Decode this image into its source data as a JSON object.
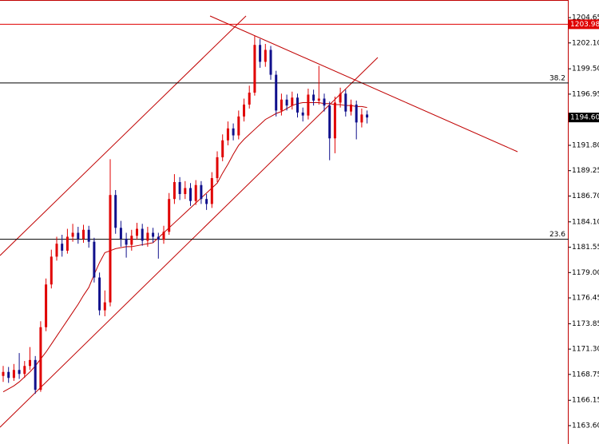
{
  "chart_data": {
    "type": "candlestick",
    "colors": {
      "up": "#e00000",
      "down": "#10108c",
      "ma": "#c00000",
      "price_line": "#e00000",
      "level": "#000000"
    },
    "ylim": [
      1161.75,
      1206.42
    ],
    "yticks": [
      1204.65,
      {
        "value": 1202.1,
        "label": "1202.10"
      },
      {
        "value": 1199.5,
        "label": "1199.50"
      },
      1196.95,
      {
        "value": 1191.8,
        "label": "1191.80"
      },
      1189.25,
      {
        "value": 1186.7,
        "label": "1186.70"
      },
      {
        "value": 1184.1,
        "label": "1184.10"
      },
      1181.55,
      {
        "value": 1179.0,
        "label": "1179.00"
      },
      1176.45,
      1173.85,
      {
        "value": 1171.3,
        "label": "1171.30"
      },
      1168.75,
      1166.15,
      {
        "value": 1163.6,
        "label": "1163.60"
      }
    ],
    "open": [
      1168.6,
      1169.0,
      1168.4,
      1169.2,
      1168.8,
      1169.6,
      1170.2,
      1167.2,
      1173.5,
      1177.8,
      1180.6,
      1181.9,
      1181.2,
      1182.6,
      1183.0,
      1182.4,
      1183.3,
      1182.1,
      1178.5,
      1175.2,
      1176.0,
      1186.8,
      1183.5,
      1182.4,
      1181.8,
      1182.7,
      1183.4,
      1182.2,
      1183.0,
      1182.6,
      1182.3,
      1183.1,
      1186.4,
      1188.1,
      1186.9,
      1187.5,
      1186.2,
      1187.8,
      1186.4,
      1185.9,
      1188.5,
      1190.6,
      1192.3,
      1193.5,
      1192.8,
      1194.7,
      1195.9,
      1197.1,
      1201.9,
      1200.2,
      1201.4,
      1198.9,
      1195.3,
      1196.4,
      1195.8,
      1196.6,
      1195.1,
      1194.8,
      1196.9,
      1196.3,
      1196.5,
      1195.8,
      1192.5,
      1196.1,
      1197.0,
      1195.2,
      1195.9,
      1194.1,
      1194.9
    ],
    "high": [
      1169.6,
      1169.5,
      1169.8,
      1170.9,
      1170.1,
      1171.5,
      1170.6,
      1174.1,
      1178.4,
      1181.3,
      1182.6,
      1182.8,
      1183.4,
      1183.9,
      1183.6,
      1183.8,
      1183.7,
      1182.5,
      1179.0,
      1177.2,
      1190.4,
      1187.3,
      1184.2,
      1183.0,
      1183.3,
      1184.0,
      1183.9,
      1183.6,
      1183.5,
      1183.0,
      1183.7,
      1187.0,
      1188.9,
      1188.6,
      1188.2,
      1188.0,
      1188.3,
      1188.2,
      1186.9,
      1189.1,
      1191.2,
      1192.9,
      1194.2,
      1194.0,
      1195.3,
      1196.5,
      1197.8,
      1202.8,
      1202.5,
      1202.0,
      1201.8,
      1199.3,
      1197.0,
      1196.9,
      1197.2,
      1197.0,
      1195.6,
      1197.5,
      1197.4,
      1199.8,
      1197.0,
      1196.2,
      1196.7,
      1197.6,
      1197.4,
      1196.4,
      1196.3,
      1195.5,
      1195.3
    ],
    "low": [
      1168.0,
      1167.9,
      1168.1,
      1168.3,
      1168.4,
      1169.2,
      1166.8,
      1167.0,
      1173.1,
      1177.4,
      1180.2,
      1180.6,
      1180.9,
      1182.1,
      1181.9,
      1182.0,
      1181.5,
      1178.0,
      1174.7,
      1174.6,
      1175.6,
      1182.9,
      1181.6,
      1180.5,
      1181.2,
      1182.3,
      1181.7,
      1181.6,
      1182.0,
      1180.4,
      1181.9,
      1182.8,
      1185.9,
      1186.3,
      1186.4,
      1185.7,
      1185.8,
      1185.9,
      1185.3,
      1185.5,
      1188.1,
      1190.2,
      1191.8,
      1192.3,
      1192.4,
      1194.2,
      1195.5,
      1196.8,
      1199.6,
      1199.7,
      1198.4,
      1194.7,
      1194.8,
      1195.3,
      1195.4,
      1194.6,
      1194.2,
      1194.4,
      1195.8,
      1195.9,
      1195.2,
      1190.3,
      1191.0,
      1195.6,
      1194.7,
      1194.8,
      1192.4,
      1193.6,
      1194.0
    ],
    "close": [
      1169.0,
      1168.4,
      1169.2,
      1168.8,
      1169.6,
      1170.2,
      1167.2,
      1173.5,
      1177.8,
      1180.6,
      1181.9,
      1181.2,
      1182.6,
      1183.0,
      1182.4,
      1183.3,
      1182.1,
      1178.5,
      1175.2,
      1176.0,
      1186.8,
      1183.5,
      1182.4,
      1181.8,
      1182.7,
      1183.4,
      1182.2,
      1183.0,
      1182.6,
      1182.3,
      1183.1,
      1186.4,
      1188.1,
      1186.9,
      1187.5,
      1186.2,
      1187.8,
      1186.4,
      1185.9,
      1188.5,
      1190.6,
      1192.3,
      1193.5,
      1192.8,
      1194.7,
      1195.9,
      1197.1,
      1201.9,
      1200.2,
      1201.4,
      1198.9,
      1195.3,
      1196.4,
      1195.8,
      1196.6,
      1195.1,
      1194.8,
      1196.9,
      1196.3,
      1196.5,
      1195.8,
      1192.5,
      1196.1,
      1197.0,
      1195.2,
      1195.9,
      1194.1,
      1194.9,
      1194.6
    ],
    "ma": [
      1167.0,
      1167.3,
      1167.6,
      1168.0,
      1168.5,
      1169.0,
      1169.6,
      1170.3,
      1171.0,
      1171.8,
      1172.6,
      1173.4,
      1174.2,
      1175.0,
      1175.8,
      1176.7,
      1177.5,
      1178.8,
      1180.0,
      1181.0,
      1181.2,
      1181.4,
      1181.5,
      1181.6,
      1181.6,
      1181.7,
      1181.8,
      1181.9,
      1182.0,
      1182.5,
      1183.0,
      1183.5,
      1184.0,
      1184.5,
      1185.0,
      1185.5,
      1186.0,
      1186.5,
      1187.0,
      1187.5,
      1188.0,
      1189.0,
      1189.9,
      1190.9,
      1191.8,
      1192.4,
      1192.9,
      1193.4,
      1193.9,
      1194.4,
      1194.7,
      1195.0,
      1195.2,
      1195.5,
      1195.8,
      1196.0,
      1196.1,
      1196.1,
      1196.1,
      1196.1,
      1196.0,
      1196.0,
      1195.9,
      1195.9,
      1195.8,
      1195.8,
      1195.7,
      1195.7,
      1195.6
    ],
    "levels": [
      {
        "label": "38.2",
        "value": 1198.07
      },
      {
        "label": "23.6",
        "value": 1182.35
      }
    ],
    "price_line": {
      "value": 1203.98
    },
    "current_price": {
      "value": 1194.6,
      "label": "1194.60"
    }
  }
}
